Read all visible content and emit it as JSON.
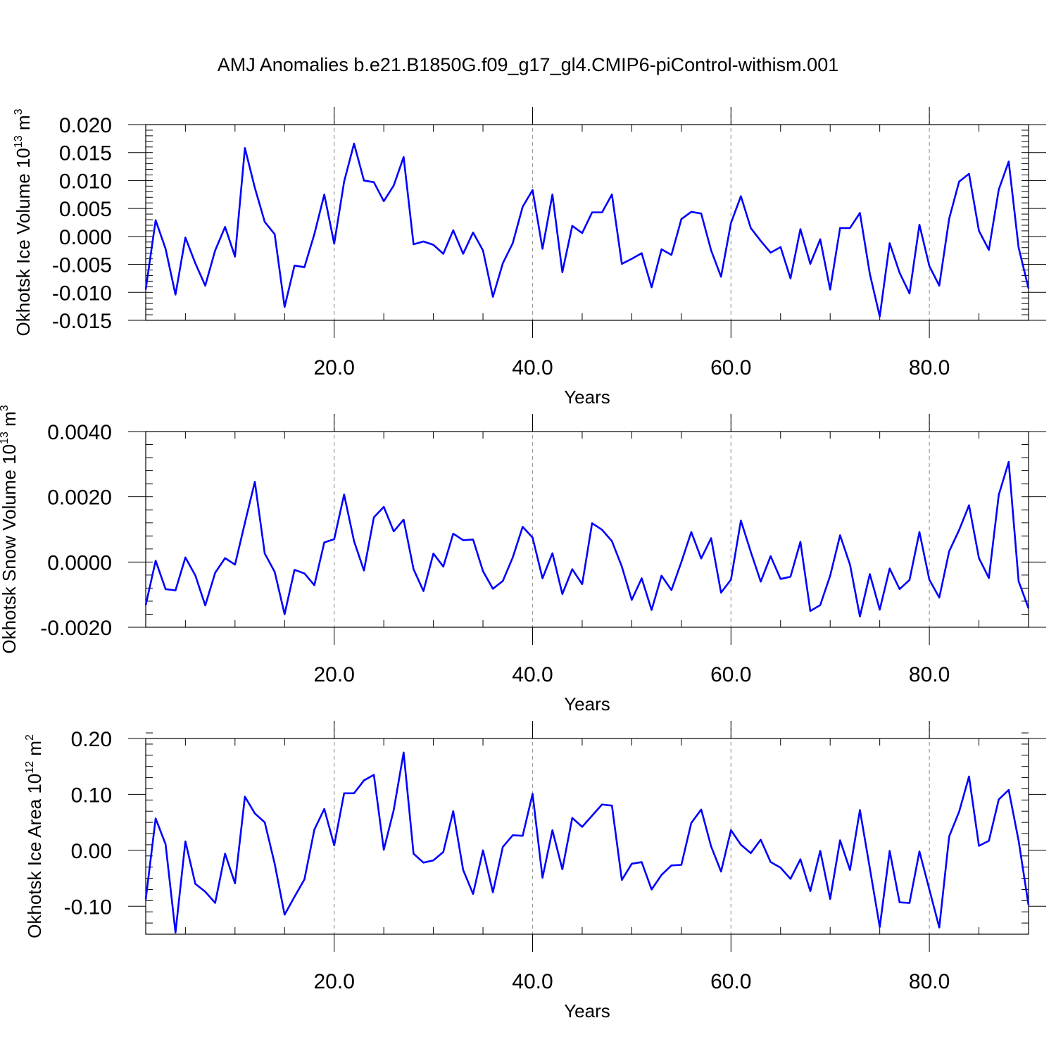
{
  "title": "AMJ Anomalies b.e21.B1850G.f09_g17_gl4.CMIP6-piControl-withism.001",
  "line_color": "#0000ff",
  "chart_data": [
    {
      "type": "line",
      "ylabel": "Okhotsk Ice Volume 10",
      "ylabel_exp": "13",
      "ylabel_unit": " m",
      "ylabel_unit_exp": "3",
      "xlabel": "Years",
      "xlim": [
        1,
        90
      ],
      "ylim": [
        -0.015,
        0.02
      ],
      "xticks": [
        20,
        40,
        60,
        80
      ],
      "xtick_labels": [
        "20.0",
        "40.0",
        "60.0",
        "80.0"
      ],
      "yticks": [
        -0.015,
        -0.01,
        -0.005,
        0.0,
        0.005,
        0.01,
        0.015,
        0.02
      ],
      "ytick_labels": [
        "-0.015",
        "-0.010",
        "-0.005",
        "0.000",
        "0.005",
        "0.010",
        "0.015",
        "0.020"
      ],
      "grid": "vertical-dashed",
      "values": [
        -0.0095,
        0.0029,
        -0.0022,
        -0.0104,
        -0.0002,
        -0.0048,
        -0.0088,
        -0.0025,
        0.0017,
        -0.0036,
        0.0158,
        0.0087,
        0.0026,
        0.0004,
        -0.0126,
        -0.0052,
        -0.0055,
        0.0004,
        0.0075,
        -0.0013,
        0.0098,
        0.0166,
        0.01,
        0.0097,
        0.0063,
        0.0091,
        0.0142,
        -0.0014,
        -0.0009,
        -0.0015,
        -0.0031,
        0.0011,
        -0.0031,
        0.0007,
        -0.0025,
        -0.0108,
        -0.0048,
        -0.0012,
        0.0053,
        0.0083,
        -0.0022,
        0.0075,
        -0.0064,
        0.0019,
        0.0006,
        0.0043,
        0.0043,
        0.0075,
        -0.0049,
        -0.004,
        -0.003,
        -0.0091,
        -0.0023,
        -0.0033,
        0.0031,
        0.0044,
        0.0041,
        -0.0025,
        -0.0072,
        0.0024,
        0.0072,
        0.0015,
        -0.0008,
        -0.0029,
        -0.0019,
        -0.0075,
        0.0013,
        -0.0049,
        -0.0005,
        -0.0095,
        0.0015,
        0.0015,
        0.0042,
        -0.0067,
        -0.0143,
        -0.0012,
        -0.0065,
        -0.0102,
        0.0021,
        -0.0053,
        -0.0088,
        0.0032,
        0.0098,
        0.0112,
        0.001,
        -0.0024,
        0.0084,
        0.0134,
        -0.002,
        -0.0093
      ]
    },
    {
      "type": "line",
      "ylabel": "Okhotsk Snow Volume 10",
      "ylabel_exp": "13",
      "ylabel_unit": " m",
      "ylabel_unit_exp": "3",
      "xlabel": "Years",
      "xlim": [
        1,
        90
      ],
      "ylim": [
        -0.002,
        0.004
      ],
      "xticks": [
        20,
        40,
        60,
        80
      ],
      "xtick_labels": [
        "20.0",
        "40.0",
        "60.0",
        "80.0"
      ],
      "yticks": [
        -0.002,
        0.0,
        0.002,
        0.004
      ],
      "ytick_labels": [
        "-0.0020",
        "0.0000",
        "0.0020",
        "0.0040"
      ],
      "grid": "vertical-dashed",
      "values": [
        -0.00132,
        4e-05,
        -0.00083,
        -0.00087,
        0.00014,
        -0.00041,
        -0.00133,
        -0.00033,
        0.00012,
        -8e-05,
        0.0012,
        0.00246,
        0.00026,
        -0.0003,
        -0.0016,
        -0.00024,
        -0.00035,
        -0.00071,
        0.0006,
        0.0007,
        0.00207,
        0.00064,
        -0.00026,
        0.00137,
        0.00169,
        0.00094,
        0.0013,
        -0.00022,
        -0.00089,
        0.00026,
        -0.00014,
        0.00087,
        0.00067,
        0.00069,
        -0.00028,
        -0.00082,
        -0.00058,
        0.00014,
        0.00108,
        0.00075,
        -0.0005,
        0.00027,
        -0.00098,
        -0.00022,
        -0.00068,
        0.00119,
        0.00099,
        0.00064,
        -0.00014,
        -0.00116,
        -0.0005,
        -0.00147,
        -0.00042,
        -0.00086,
        0.0,
        0.00092,
        0.00011,
        0.00073,
        -0.00094,
        -0.00054,
        0.00127,
        0.00031,
        -0.0006,
        0.00018,
        -0.00052,
        -0.00045,
        0.00062,
        -0.0015,
        -0.00132,
        -0.00042,
        0.00082,
        -8e-05,
        -0.00167,
        -0.00037,
        -0.00146,
        -0.0002,
        -0.00083,
        -0.00055,
        0.00092,
        -0.00054,
        -0.00109,
        0.00033,
        0.00098,
        0.00174,
        0.00012,
        -0.00049,
        0.00206,
        0.00307,
        -0.00059,
        -0.00142
      ]
    },
    {
      "type": "line",
      "ylabel": "Okhotsk Ice Area 10",
      "ylabel_exp": "12",
      "ylabel_unit": " m",
      "ylabel_unit_exp": "2",
      "xlabel": "Years",
      "xlim": [
        1,
        90
      ],
      "ylim": [
        -0.15,
        0.2
      ],
      "xticks": [
        20,
        40,
        60,
        80
      ],
      "xtick_labels": [
        "20.0",
        "40.0",
        "60.0",
        "80.0"
      ],
      "yticks": [
        -0.1,
        0.0,
        0.1,
        0.2
      ],
      "ytick_labels": [
        "-0.10",
        "0.00",
        "0.10",
        "0.20"
      ],
      "grid": "vertical-dashed",
      "values": [
        -0.088,
        0.057,
        0.011,
        -0.147,
        0.016,
        -0.06,
        -0.074,
        -0.094,
        -0.006,
        -0.059,
        0.096,
        0.066,
        0.05,
        -0.024,
        -0.115,
        -0.083,
        -0.052,
        0.037,
        0.074,
        0.009,
        0.102,
        0.102,
        0.125,
        0.135,
        0.001,
        0.072,
        0.175,
        -0.006,
        -0.022,
        -0.018,
        -0.003,
        0.07,
        -0.035,
        -0.078,
        0.0,
        -0.075,
        0.006,
        0.027,
        0.026,
        0.101,
        -0.049,
        0.036,
        -0.034,
        0.058,
        0.042,
        0.062,
        0.082,
        0.08,
        -0.053,
        -0.024,
        -0.021,
        -0.07,
        -0.044,
        -0.027,
        -0.026,
        0.049,
        0.073,
        0.007,
        -0.038,
        0.036,
        0.01,
        -0.005,
        0.019,
        -0.021,
        -0.031,
        -0.051,
        -0.016,
        -0.073,
        -0.001,
        -0.087,
        0.018,
        -0.035,
        0.072,
        -0.032,
        -0.137,
        -0.001,
        -0.093,
        -0.094,
        -0.002,
        -0.07,
        -0.138,
        0.025,
        0.069,
        0.132,
        0.008,
        0.017,
        0.091,
        0.108,
        0.017,
        -0.098
      ]
    }
  ]
}
